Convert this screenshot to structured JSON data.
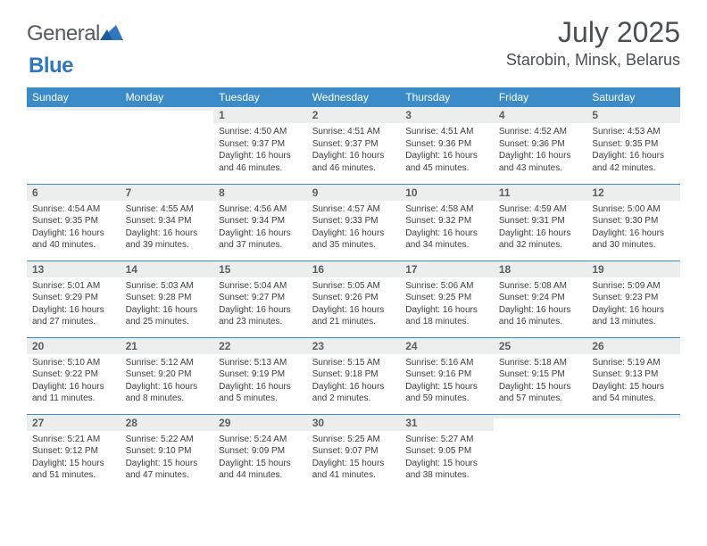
{
  "logo": {
    "text1": "General",
    "text2": "Blue"
  },
  "title": "July 2025",
  "location": "Starobin, Minsk, Belarus",
  "colors": {
    "header_bg": "#3b8bc9",
    "daynum_bg": "#eceded",
    "text": "#3d3d3d",
    "title_text": "#4a4f54",
    "divider": "#3b8bc9"
  },
  "dow": [
    "Sunday",
    "Monday",
    "Tuesday",
    "Wednesday",
    "Thursday",
    "Friday",
    "Saturday"
  ],
  "weeks": [
    [
      null,
      null,
      {
        "n": "1",
        "sr": "Sunrise: 4:50 AM",
        "ss": "Sunset: 9:37 PM",
        "dl": "Daylight: 16 hours and 46 minutes."
      },
      {
        "n": "2",
        "sr": "Sunrise: 4:51 AM",
        "ss": "Sunset: 9:37 PM",
        "dl": "Daylight: 16 hours and 46 minutes."
      },
      {
        "n": "3",
        "sr": "Sunrise: 4:51 AM",
        "ss": "Sunset: 9:36 PM",
        "dl": "Daylight: 16 hours and 45 minutes."
      },
      {
        "n": "4",
        "sr": "Sunrise: 4:52 AM",
        "ss": "Sunset: 9:36 PM",
        "dl": "Daylight: 16 hours and 43 minutes."
      },
      {
        "n": "5",
        "sr": "Sunrise: 4:53 AM",
        "ss": "Sunset: 9:35 PM",
        "dl": "Daylight: 16 hours and 42 minutes."
      }
    ],
    [
      {
        "n": "6",
        "sr": "Sunrise: 4:54 AM",
        "ss": "Sunset: 9:35 PM",
        "dl": "Daylight: 16 hours and 40 minutes."
      },
      {
        "n": "7",
        "sr": "Sunrise: 4:55 AM",
        "ss": "Sunset: 9:34 PM",
        "dl": "Daylight: 16 hours and 39 minutes."
      },
      {
        "n": "8",
        "sr": "Sunrise: 4:56 AM",
        "ss": "Sunset: 9:34 PM",
        "dl": "Daylight: 16 hours and 37 minutes."
      },
      {
        "n": "9",
        "sr": "Sunrise: 4:57 AM",
        "ss": "Sunset: 9:33 PM",
        "dl": "Daylight: 16 hours and 35 minutes."
      },
      {
        "n": "10",
        "sr": "Sunrise: 4:58 AM",
        "ss": "Sunset: 9:32 PM",
        "dl": "Daylight: 16 hours and 34 minutes."
      },
      {
        "n": "11",
        "sr": "Sunrise: 4:59 AM",
        "ss": "Sunset: 9:31 PM",
        "dl": "Daylight: 16 hours and 32 minutes."
      },
      {
        "n": "12",
        "sr": "Sunrise: 5:00 AM",
        "ss": "Sunset: 9:30 PM",
        "dl": "Daylight: 16 hours and 30 minutes."
      }
    ],
    [
      {
        "n": "13",
        "sr": "Sunrise: 5:01 AM",
        "ss": "Sunset: 9:29 PM",
        "dl": "Daylight: 16 hours and 27 minutes."
      },
      {
        "n": "14",
        "sr": "Sunrise: 5:03 AM",
        "ss": "Sunset: 9:28 PM",
        "dl": "Daylight: 16 hours and 25 minutes."
      },
      {
        "n": "15",
        "sr": "Sunrise: 5:04 AM",
        "ss": "Sunset: 9:27 PM",
        "dl": "Daylight: 16 hours and 23 minutes."
      },
      {
        "n": "16",
        "sr": "Sunrise: 5:05 AM",
        "ss": "Sunset: 9:26 PM",
        "dl": "Daylight: 16 hours and 21 minutes."
      },
      {
        "n": "17",
        "sr": "Sunrise: 5:06 AM",
        "ss": "Sunset: 9:25 PM",
        "dl": "Daylight: 16 hours and 18 minutes."
      },
      {
        "n": "18",
        "sr": "Sunrise: 5:08 AM",
        "ss": "Sunset: 9:24 PM",
        "dl": "Daylight: 16 hours and 16 minutes."
      },
      {
        "n": "19",
        "sr": "Sunrise: 5:09 AM",
        "ss": "Sunset: 9:23 PM",
        "dl": "Daylight: 16 hours and 13 minutes."
      }
    ],
    [
      {
        "n": "20",
        "sr": "Sunrise: 5:10 AM",
        "ss": "Sunset: 9:22 PM",
        "dl": "Daylight: 16 hours and 11 minutes."
      },
      {
        "n": "21",
        "sr": "Sunrise: 5:12 AM",
        "ss": "Sunset: 9:20 PM",
        "dl": "Daylight: 16 hours and 8 minutes."
      },
      {
        "n": "22",
        "sr": "Sunrise: 5:13 AM",
        "ss": "Sunset: 9:19 PM",
        "dl": "Daylight: 16 hours and 5 minutes."
      },
      {
        "n": "23",
        "sr": "Sunrise: 5:15 AM",
        "ss": "Sunset: 9:18 PM",
        "dl": "Daylight: 16 hours and 2 minutes."
      },
      {
        "n": "24",
        "sr": "Sunrise: 5:16 AM",
        "ss": "Sunset: 9:16 PM",
        "dl": "Daylight: 15 hours and 59 minutes."
      },
      {
        "n": "25",
        "sr": "Sunrise: 5:18 AM",
        "ss": "Sunset: 9:15 PM",
        "dl": "Daylight: 15 hours and 57 minutes."
      },
      {
        "n": "26",
        "sr": "Sunrise: 5:19 AM",
        "ss": "Sunset: 9:13 PM",
        "dl": "Daylight: 15 hours and 54 minutes."
      }
    ],
    [
      {
        "n": "27",
        "sr": "Sunrise: 5:21 AM",
        "ss": "Sunset: 9:12 PM",
        "dl": "Daylight: 15 hours and 51 minutes."
      },
      {
        "n": "28",
        "sr": "Sunrise: 5:22 AM",
        "ss": "Sunset: 9:10 PM",
        "dl": "Daylight: 15 hours and 47 minutes."
      },
      {
        "n": "29",
        "sr": "Sunrise: 5:24 AM",
        "ss": "Sunset: 9:09 PM",
        "dl": "Daylight: 15 hours and 44 minutes."
      },
      {
        "n": "30",
        "sr": "Sunrise: 5:25 AM",
        "ss": "Sunset: 9:07 PM",
        "dl": "Daylight: 15 hours and 41 minutes."
      },
      {
        "n": "31",
        "sr": "Sunrise: 5:27 AM",
        "ss": "Sunset: 9:05 PM",
        "dl": "Daylight: 15 hours and 38 minutes."
      },
      null,
      null
    ]
  ]
}
